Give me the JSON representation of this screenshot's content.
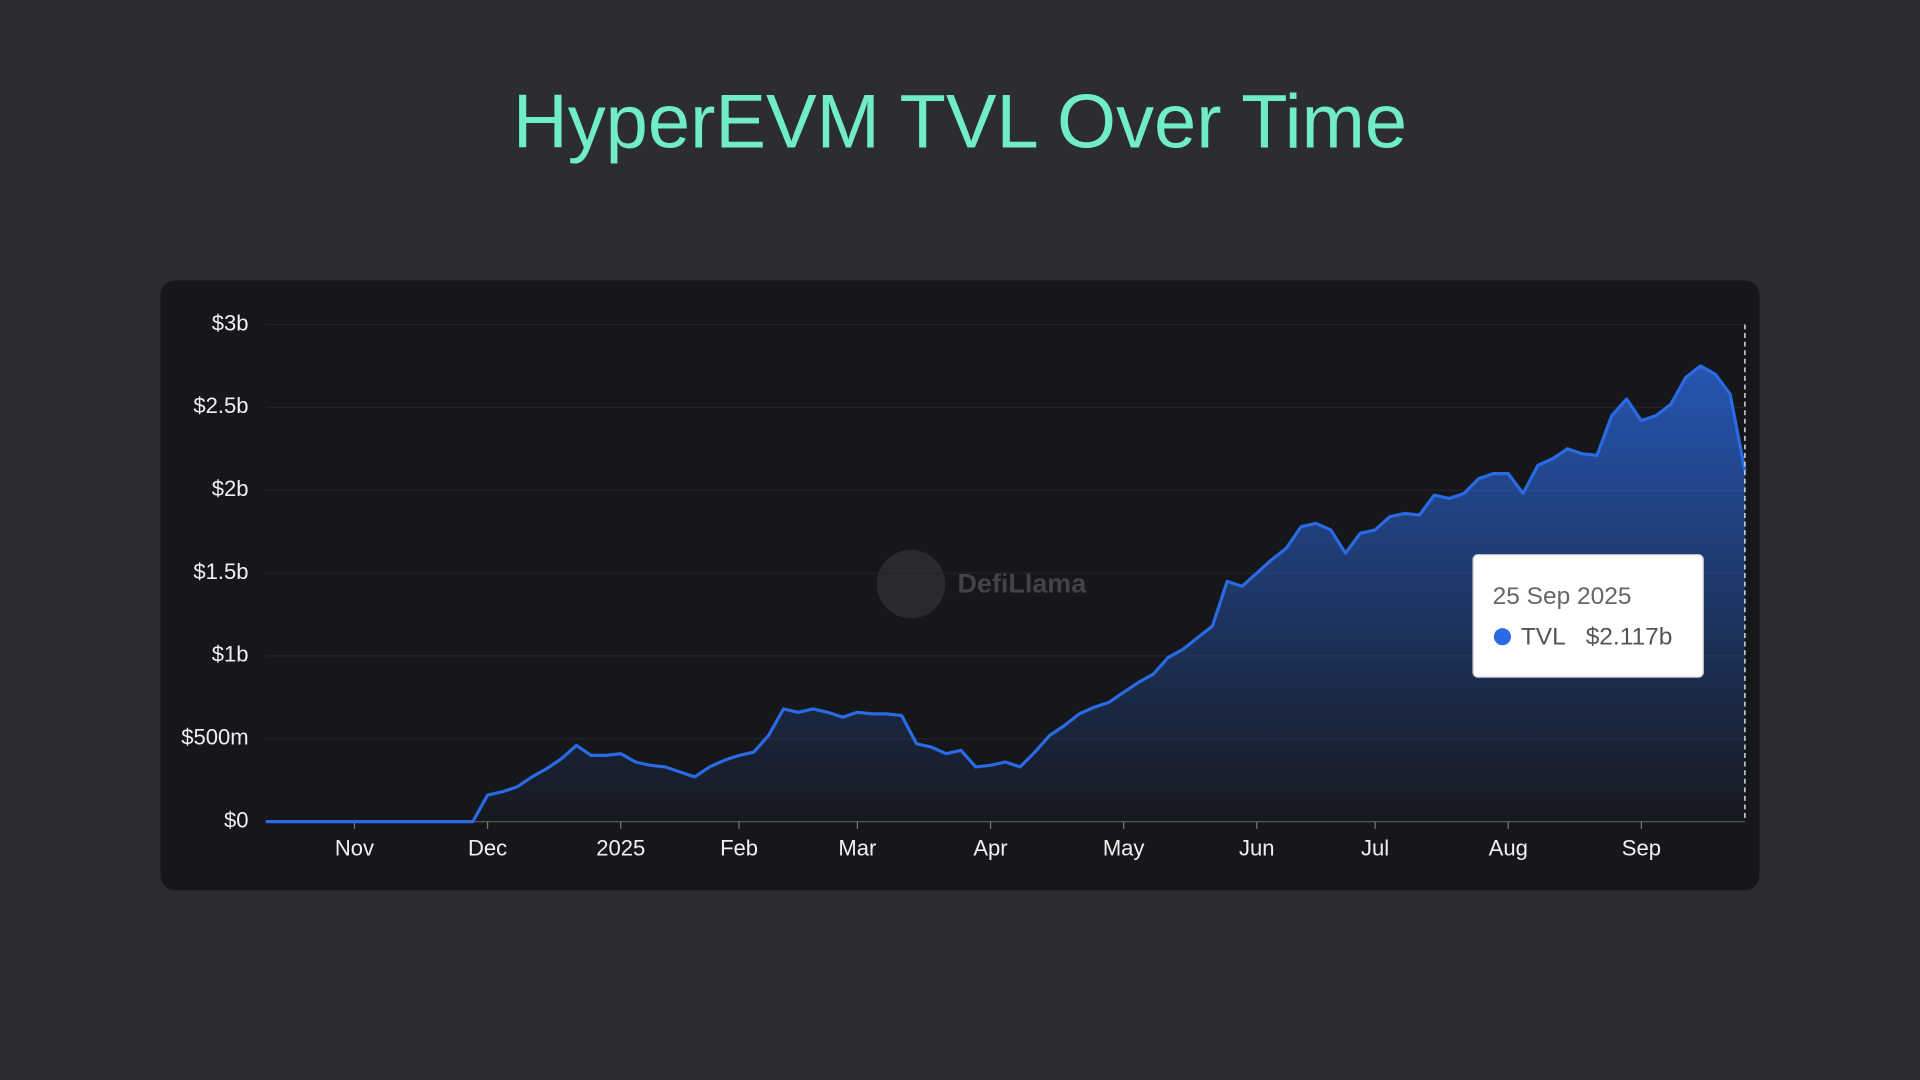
{
  "chart_data": {
    "type": "area",
    "title": "HyperEVM TVL Over Time",
    "watermark": "DefiLlama",
    "categories": [
      null,
      null,
      null,
      null,
      null,
      null,
      "Nov",
      null,
      null,
      null,
      null,
      null,
      null,
      null,
      null,
      "Dec",
      null,
      null,
      null,
      null,
      null,
      null,
      null,
      null,
      "2025",
      null,
      null,
      null,
      null,
      null,
      null,
      null,
      "Feb",
      null,
      null,
      null,
      null,
      null,
      null,
      null,
      "Mar",
      null,
      null,
      null,
      null,
      null,
      null,
      null,
      null,
      "Apr",
      null,
      null,
      null,
      null,
      null,
      null,
      null,
      null,
      "May",
      null,
      null,
      null,
      null,
      null,
      null,
      null,
      null,
      "Jun",
      null,
      null,
      null,
      null,
      null,
      null,
      null,
      "Jul",
      null,
      null,
      null,
      null,
      null,
      null,
      null,
      null,
      "Aug",
      null,
      null,
      null,
      null,
      null,
      null,
      null,
      null,
      "Sep",
      null,
      null,
      null,
      null,
      null,
      null,
      null
    ],
    "series": [
      {
        "name": "TVL",
        "color": "#2a6ae3",
        "values": [
          0,
          0,
          0,
          0,
          0,
          0,
          0,
          0,
          0,
          0,
          0,
          0,
          0,
          0,
          0,
          0.16,
          0.18,
          0.21,
          0.27,
          0.32,
          0.38,
          0.46,
          0.4,
          0.4,
          0.41,
          0.36,
          0.34,
          0.33,
          0.3,
          0.27,
          0.33,
          0.37,
          0.4,
          0.42,
          0.52,
          0.68,
          0.66,
          0.68,
          0.66,
          0.63,
          0.66,
          0.65,
          0.65,
          0.64,
          0.47,
          0.45,
          0.41,
          0.43,
          0.33,
          0.34,
          0.36,
          0.33,
          0.42,
          0.52,
          0.58,
          0.65,
          0.69,
          0.72,
          0.78,
          0.84,
          0.89,
          0.99,
          1.04,
          1.11,
          1.18,
          1.45,
          1.42,
          1.5,
          1.58,
          1.65,
          1.78,
          1.8,
          1.76,
          1.62,
          1.74,
          1.76,
          1.84,
          1.86,
          1.85,
          1.97,
          1.95,
          1.98,
          2.07,
          2.1,
          2.1,
          1.98,
          2.15,
          2.19,
          2.25,
          2.22,
          2.21,
          2.45,
          2.55,
          2.42,
          2.45,
          2.52,
          2.68,
          2.75,
          2.7,
          2.58,
          2.117
        ]
      }
    ],
    "ylim": [
      0,
      3
    ],
    "yticks": [
      {
        "value": 0,
        "label": "$0"
      },
      {
        "value": 0.5,
        "label": "$500m"
      },
      {
        "value": 1,
        "label": "$1b"
      },
      {
        "value": 1.5,
        "label": "$1.5b"
      },
      {
        "value": 2,
        "label": "$2b"
      },
      {
        "value": 2.5,
        "label": "$2.5b"
      },
      {
        "value": 3,
        "label": "$3b"
      }
    ],
    "grid": true,
    "tooltip": {
      "title": "25 Sep 2025",
      "value_label": "$2.117b"
    }
  }
}
